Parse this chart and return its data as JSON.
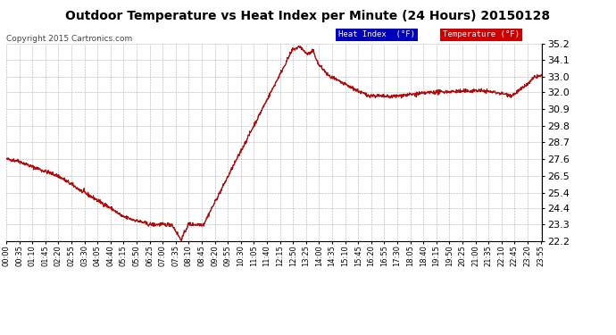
{
  "title": "Outdoor Temperature vs Heat Index per Minute (24 Hours) 20150128",
  "copyright": "Copyright 2015 Cartronics.com",
  "ylim": [
    22.2,
    35.2
  ],
  "yticks": [
    22.2,
    23.3,
    24.4,
    25.4,
    26.5,
    27.6,
    28.7,
    29.8,
    30.9,
    32.0,
    33.0,
    34.1,
    35.2
  ],
  "legend_heat_index": "Heat Index  (°F)",
  "legend_temperature": "Temperature (°F)",
  "legend_heat_index_bg": "#0000bb",
  "legend_temperature_bg": "#cc0000",
  "background_color": "#ffffff",
  "plot_bg": "#ffffff",
  "grid_color": "#999999",
  "temp_color": "#cc0000",
  "heat_color": "#111111",
  "total_minutes": 1440,
  "x_tick_interval": 35
}
